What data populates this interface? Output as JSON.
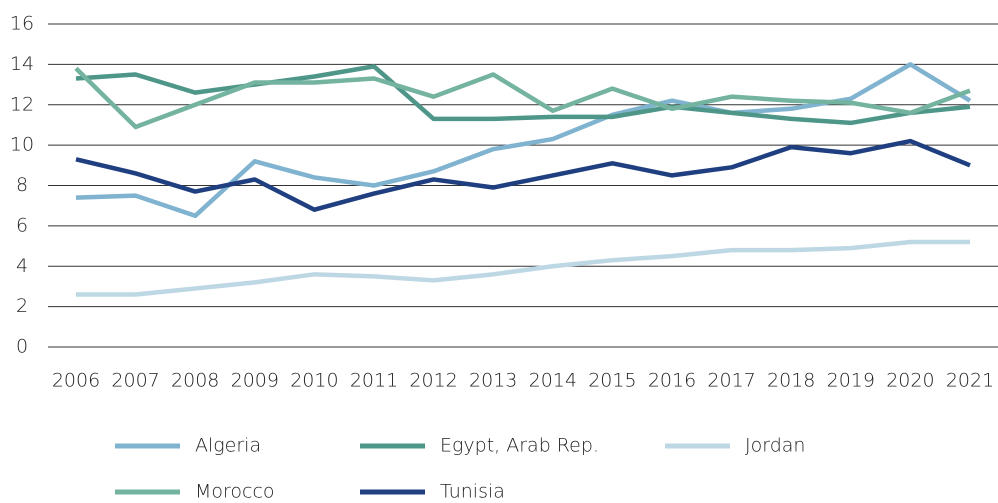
{
  "chart_data": {
    "type": "line",
    "x": [
      2006,
      2007,
      2008,
      2009,
      2010,
      2011,
      2012,
      2013,
      2014,
      2015,
      2016,
      2017,
      2018,
      2019,
      2020,
      2021
    ],
    "series": [
      {
        "name": "Algeria",
        "color": "#7fb3cf",
        "values": [
          7.4,
          7.5,
          6.5,
          9.2,
          8.4,
          8.0,
          8.7,
          9.8,
          10.3,
          11.5,
          12.2,
          11.6,
          11.8,
          12.3,
          14.0,
          12.2
        ]
      },
      {
        "name": "Egypt, Arab Rep.",
        "color": "#4e9688",
        "values": [
          13.3,
          13.5,
          12.6,
          13.0,
          13.4,
          13.9,
          11.3,
          11.3,
          11.4,
          11.4,
          11.9,
          11.6,
          11.3,
          11.1,
          11.6,
          11.9
        ]
      },
      {
        "name": "Jordan",
        "color": "#bdd8e4",
        "values": [
          2.6,
          2.6,
          2.9,
          3.2,
          3.6,
          3.5,
          3.3,
          3.6,
          4.0,
          4.3,
          4.5,
          4.8,
          4.8,
          4.9,
          5.2,
          5.2
        ]
      },
      {
        "name": "Morocco",
        "color": "#73b3a0",
        "values": [
          13.8,
          10.9,
          12.0,
          13.1,
          13.1,
          13.3,
          12.4,
          13.5,
          11.7,
          12.8,
          11.8,
          12.4,
          12.2,
          12.1,
          11.6,
          12.7
        ]
      },
      {
        "name": "Tunisia",
        "color": "#1f3f80",
        "values": [
          9.3,
          8.6,
          7.7,
          8.3,
          6.8,
          7.6,
          8.3,
          7.9,
          8.5,
          9.1,
          8.5,
          8.9,
          9.9,
          9.6,
          10.2,
          9.0
        ]
      }
    ],
    "xlim": [
      2006,
      2021
    ],
    "ylim": [
      0,
      16
    ],
    "yticks": [
      0,
      2,
      4,
      6,
      8,
      10,
      12,
      14,
      16
    ],
    "grid": true
  }
}
